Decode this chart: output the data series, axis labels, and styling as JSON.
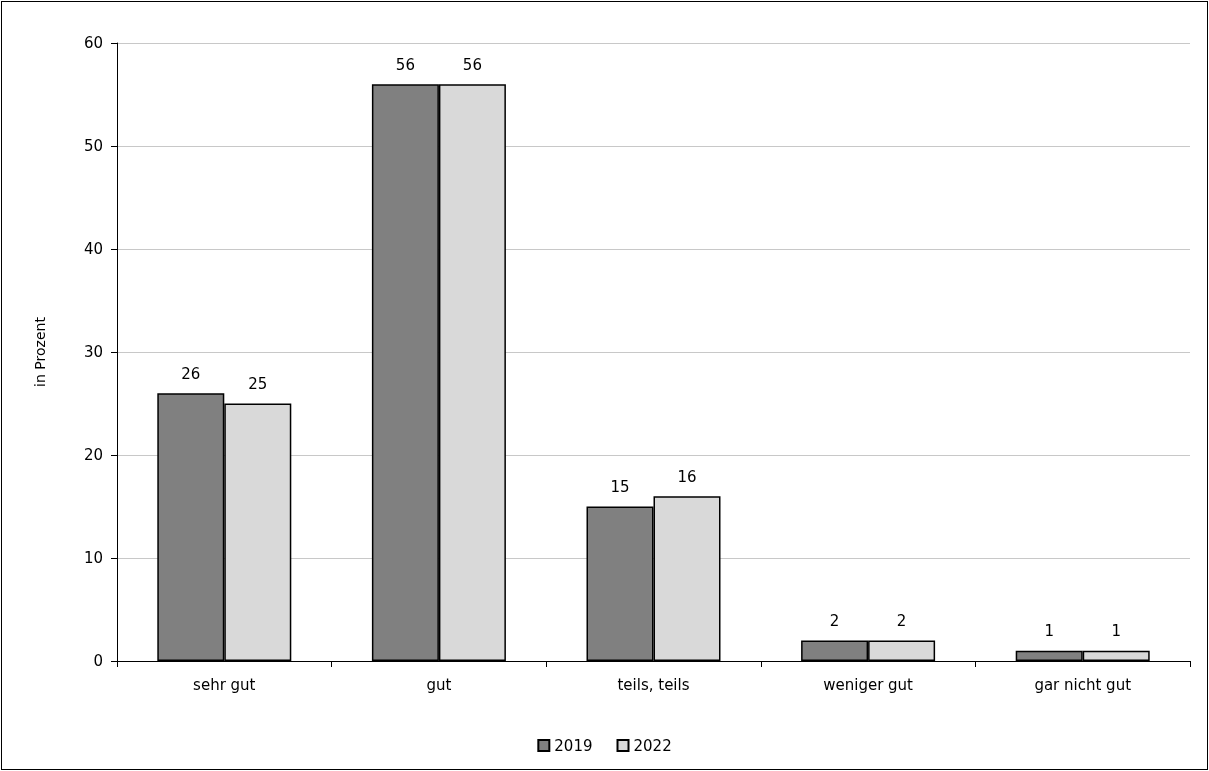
{
  "chart_data": {
    "type": "bar",
    "ylabel": "in Prozent",
    "categories": [
      "sehr gut",
      "gut",
      "teils, teils",
      "weniger gut",
      "gar nicht gut"
    ],
    "series": [
      {
        "name": "2019",
        "color": "#808080",
        "values": [
          26,
          56,
          15,
          2,
          1
        ]
      },
      {
        "name": "2022",
        "color": "#d9d9d9",
        "values": [
          25,
          56,
          16,
          2,
          1
        ]
      }
    ],
    "ylim": [
      0,
      60
    ],
    "yticks": [
      0,
      10,
      20,
      30,
      40,
      50,
      60
    ],
    "grid": "y",
    "legend": "bottom",
    "data_labels": true
  }
}
